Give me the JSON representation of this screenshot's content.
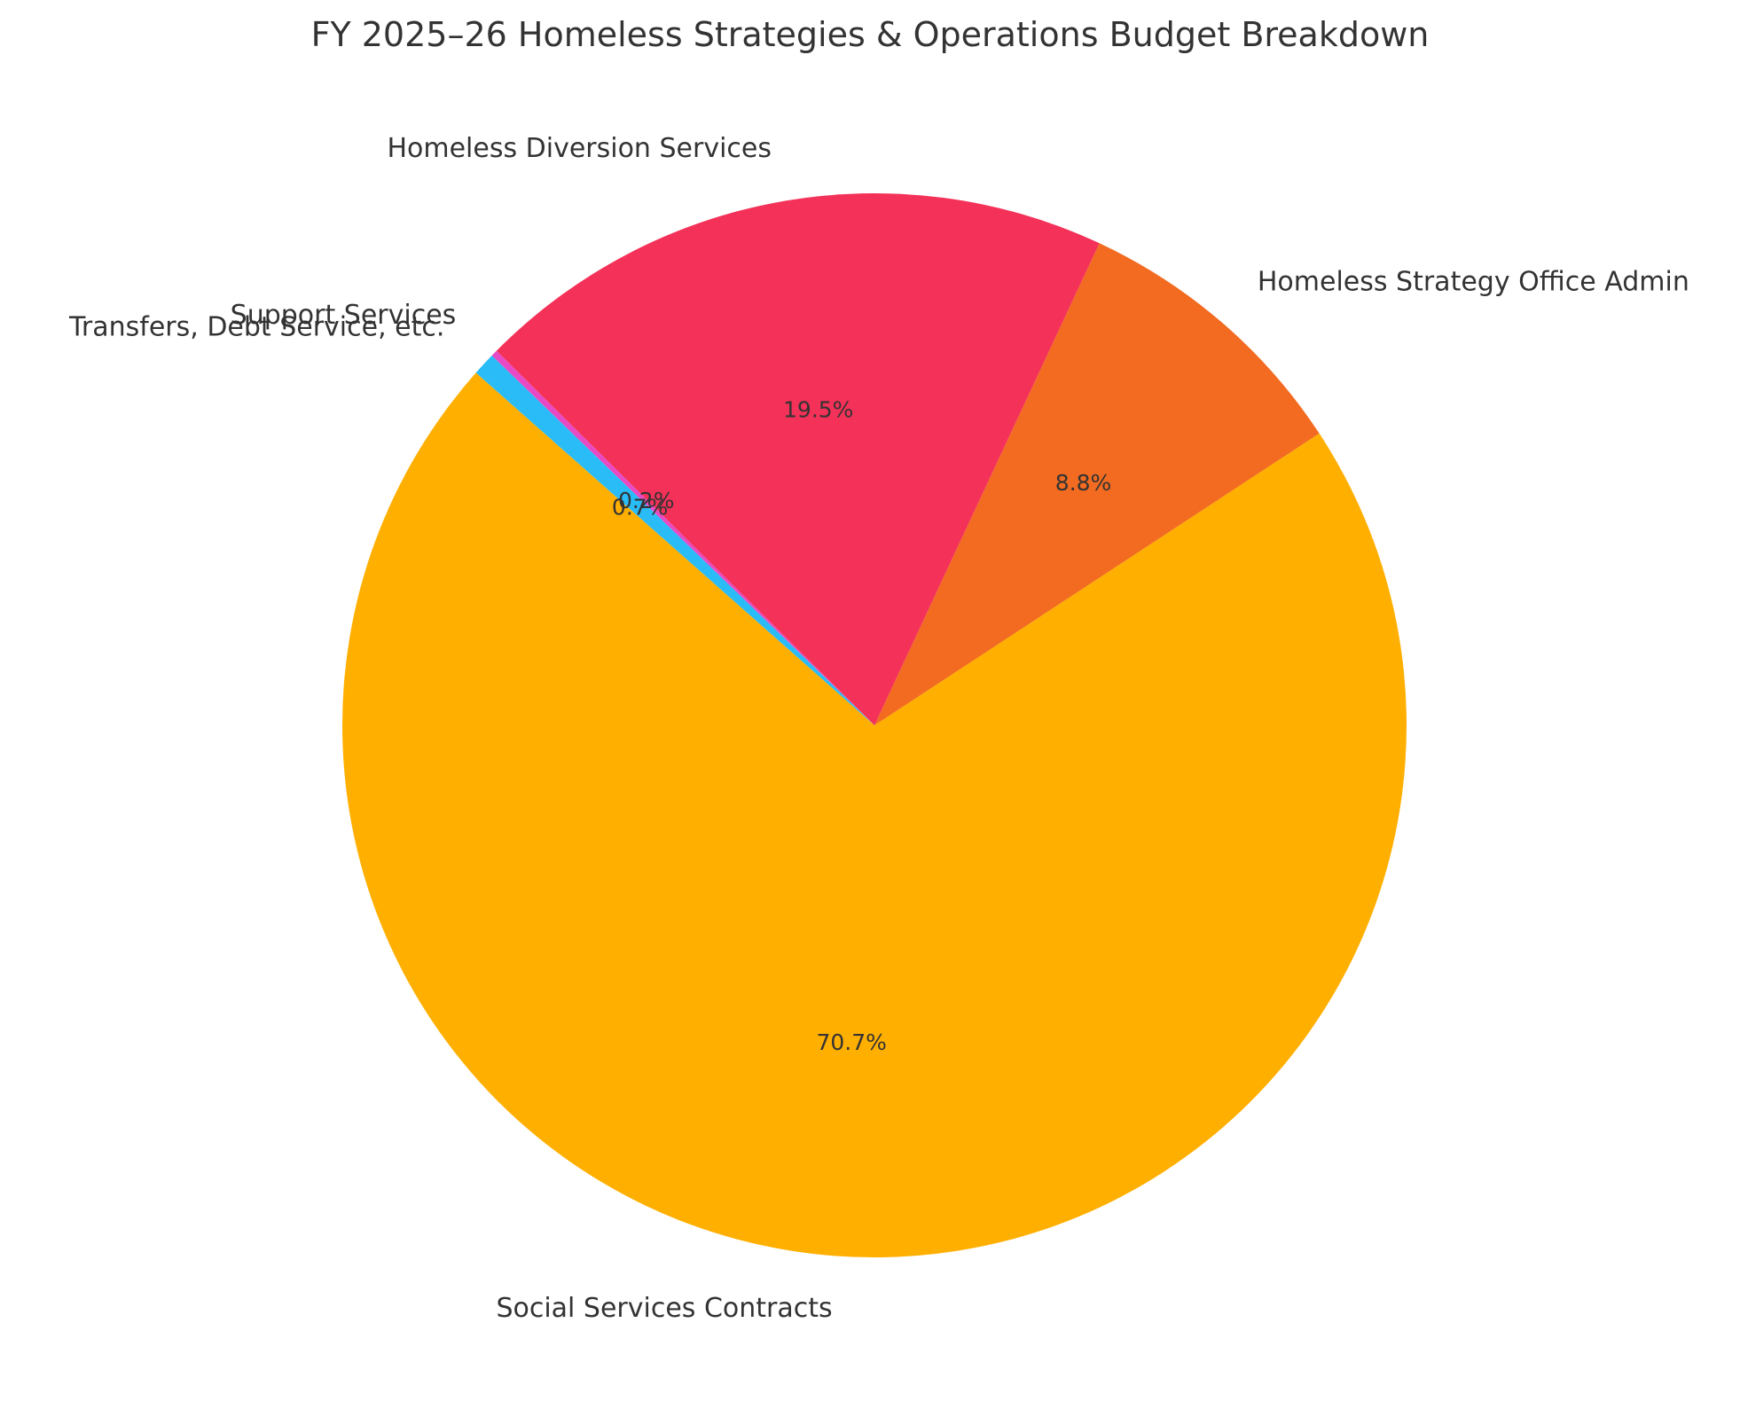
{
  "chart_data": {
    "type": "pie",
    "title": "FY 2025–26 Homeless Strategies & Operations Budget Breakdown",
    "slices": [
      {
        "label": "Social Services Contracts",
        "percent": 70.7,
        "percent_label": "70.7%",
        "color": "#FFAF00"
      },
      {
        "label": "Homeless Strategy Office Admin",
        "percent": 8.8,
        "percent_label": "8.8%",
        "color": "#F26B21"
      },
      {
        "label": "Homeless Diversion Services",
        "percent": 19.5,
        "percent_label": "19.5%",
        "color": "#F43158"
      },
      {
        "label": "Support Services",
        "percent": 0.2,
        "percent_label": "0.2%",
        "color": "#E84AC6"
      },
      {
        "label": "Transfers, Debt Service, etc.",
        "percent": 0.7,
        "percent_label": "0.7%",
        "color": "#29BCF7"
      }
    ],
    "legend": "none"
  }
}
